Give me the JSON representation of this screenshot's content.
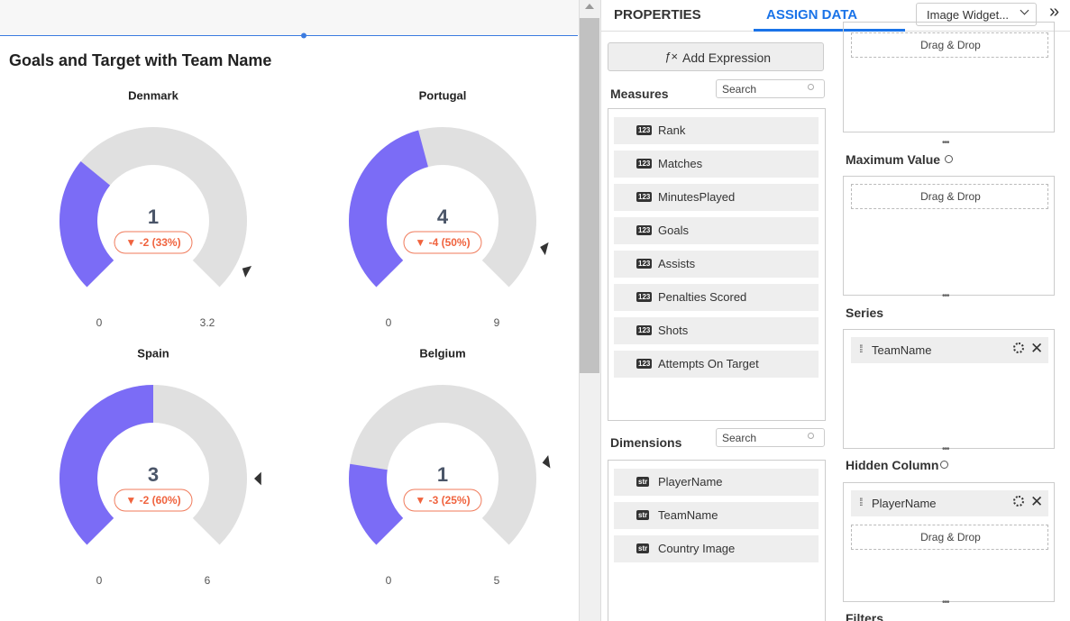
{
  "dashboard": {
    "title": "Goals and Target with Team Name",
    "fill_color": "#7b6cf6",
    "track_color": "#e0e0e0",
    "gauges": [
      {
        "name": "Denmark",
        "value": 1,
        "target": 3,
        "min": 0,
        "max": 3.2,
        "change": "▼ -2 (33%)"
      },
      {
        "name": "Portugal",
        "value": 4,
        "target": 8,
        "min": 0,
        "max": 9,
        "change": "▼ -4 (50%)"
      },
      {
        "name": "Spain",
        "value": 3,
        "target": 5,
        "min": 0,
        "max": 6,
        "change": "▼ -2 (60%)"
      },
      {
        "name": "Belgium",
        "value": 1,
        "target": 4,
        "min": 0,
        "max": 5,
        "change": "▼ -3 (25%)"
      }
    ]
  },
  "panel": {
    "tabs": [
      "PROPERTIES",
      "ASSIGN DATA"
    ],
    "widget_select": "Image Widget...",
    "expand": "»",
    "add_expression": {
      "icon": "ƒ×",
      "label": "Add Expression"
    },
    "measures": {
      "title": "Measures",
      "search": "Search",
      "items": [
        {
          "type": "123",
          "label": "Rank"
        },
        {
          "type": "123",
          "label": "Matches"
        },
        {
          "type": "123",
          "label": "MinutesPlayed"
        },
        {
          "type": "123",
          "label": "Goals"
        },
        {
          "type": "123",
          "label": "Assists"
        },
        {
          "type": "123",
          "label": "Penalties Scored"
        },
        {
          "type": "123",
          "label": "Shots"
        },
        {
          "type": "123",
          "label": "Attempts On Target"
        }
      ]
    },
    "dimensions": {
      "title": "Dimensions",
      "search": "Search",
      "items": [
        {
          "type": "str",
          "label": "PlayerName"
        },
        {
          "type": "str",
          "label": "TeamName"
        },
        {
          "type": "str",
          "label": "Country Image"
        }
      ]
    },
    "wells": [
      {
        "placeholder": "Drag & Drop"
      },
      {
        "title": "Maximum Value",
        "placeholder": "Drag & Drop"
      },
      {
        "title": "Series",
        "item": "TeamName"
      },
      {
        "title": "Hidden Column",
        "item": "PlayerName",
        "placeholder": "Drag & Drop"
      },
      {
        "title": "Filters"
      }
    ]
  }
}
